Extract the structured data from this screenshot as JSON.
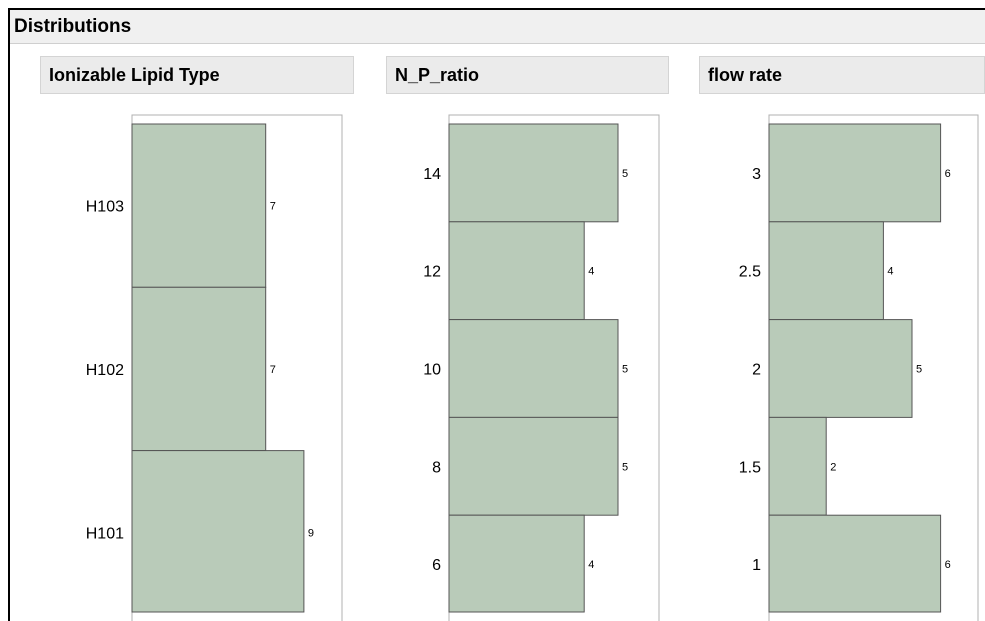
{
  "header": {
    "title": "Distributions"
  },
  "colors": {
    "bar_fill": "#b9cbb9",
    "bar_stroke": "#555555",
    "frame_stroke": "#b0b0b0"
  },
  "chart_data": [
    {
      "type": "bar",
      "orientation": "horizontal",
      "title": "Ionizable Lipid Type",
      "categories": [
        "H103",
        "H102",
        "H101"
      ],
      "values": [
        7,
        7,
        9
      ],
      "data_labels": [
        "7",
        "7",
        "9"
      ]
    },
    {
      "type": "bar",
      "orientation": "horizontal",
      "title": "N_P_ratio",
      "categories": [
        "14",
        "12",
        "10",
        "8",
        "6"
      ],
      "values": [
        5,
        4,
        5,
        5,
        4
      ],
      "data_labels": [
        "5",
        "4",
        "5",
        "5",
        "4"
      ]
    },
    {
      "type": "bar",
      "orientation": "horizontal",
      "title": "flow rate",
      "categories": [
        "3",
        "2.5",
        "2",
        "1.5",
        "1"
      ],
      "values": [
        6,
        4,
        5,
        2,
        6
      ],
      "data_labels": [
        "6",
        "4",
        "5",
        "2",
        "6"
      ]
    }
  ]
}
